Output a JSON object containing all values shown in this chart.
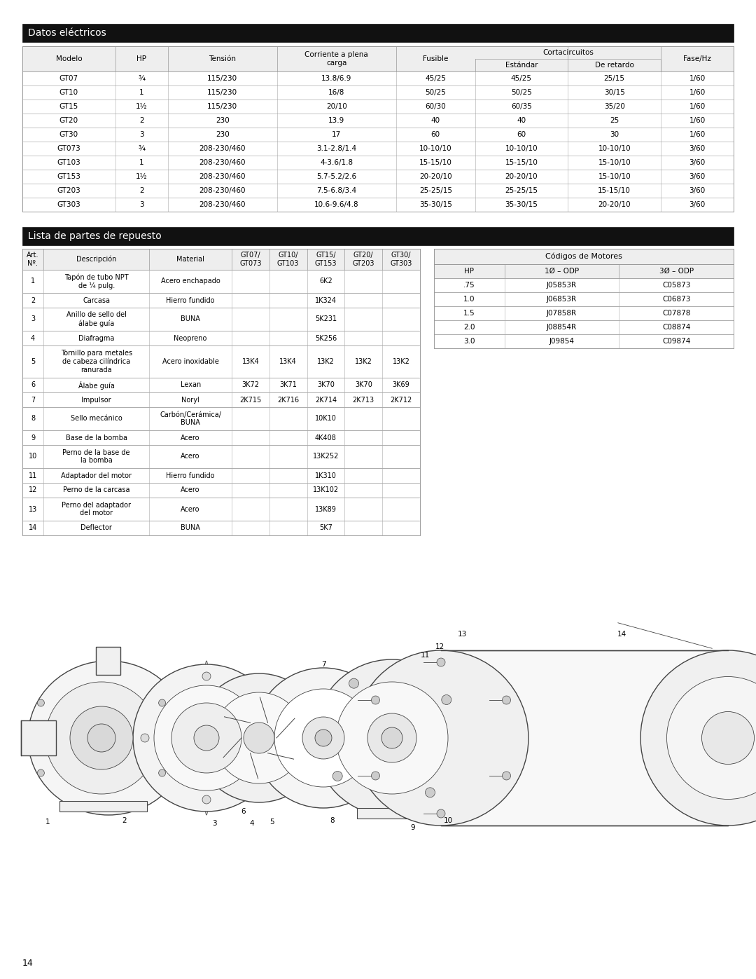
{
  "page_bg": "#ffffff",
  "header1_bg": "#111111",
  "header1_text": "Datos eléctricos",
  "header2_bg": "#111111",
  "header2_text": "Lista de partes de repuesto",
  "font_size_header": 10,
  "font_size_table": 7.5,
  "elec_table": {
    "col_headers": [
      "Modelo",
      "HP",
      "Tensión",
      "Corriente a plena\ncarga",
      "Fusible",
      "Estándar",
      "De retardo",
      "Fase/Hz"
    ],
    "span_header": "Cortacircuitos",
    "rows": [
      [
        "GT07",
        "¾",
        "115/230",
        "13.8/6.9",
        "45/25",
        "45/25",
        "25/15",
        "1/60"
      ],
      [
        "GT10",
        "1",
        "115/230",
        "16/8",
        "50/25",
        "50/25",
        "30/15",
        "1/60"
      ],
      [
        "GT15",
        "1½",
        "115/230",
        "20/10",
        "60/30",
        "60/35",
        "35/20",
        "1/60"
      ],
      [
        "GT20",
        "2",
        "230",
        "13.9",
        "40",
        "40",
        "25",
        "1/60"
      ],
      [
        "GT30",
        "3",
        "230",
        "17",
        "60",
        "60",
        "30",
        "1/60"
      ],
      [
        "GT073",
        "¾",
        "208-230/460",
        "3.1-2.8/1.4",
        "10-10/10",
        "10-10/10",
        "10-10/10",
        "3/60"
      ],
      [
        "GT103",
        "1",
        "208-230/460",
        "4-3.6/1.8",
        "15-15/10",
        "15-15/10",
        "15-10/10",
        "3/60"
      ],
      [
        "GT153",
        "1½",
        "208-230/460",
        "5.7-5.2/2.6",
        "20-20/10",
        "20-20/10",
        "15-10/10",
        "3/60"
      ],
      [
        "GT203",
        "2",
        "208-230/460",
        "7.5-6.8/3.4",
        "25-25/15",
        "25-25/15",
        "15-15/10",
        "3/60"
      ],
      [
        "GT303",
        "3",
        "208-230/460",
        "10.6-9.6/4.8",
        "35-30/15",
        "35-30/15",
        "20-20/10",
        "3/60"
      ]
    ]
  },
  "parts_table": {
    "rows": [
      [
        "1",
        "Tapón de tubo NPT\nde ¼ pulg.",
        "Acero enchapado",
        "6K2",
        "",
        "",
        "",
        ""
      ],
      [
        "2",
        "Carcasa",
        "Hierro fundido",
        "1K324",
        "",
        "",
        "",
        ""
      ],
      [
        "3",
        "Anillo de sello del\nálabe guía",
        "BUNA",
        "5K231",
        "",
        "",
        "",
        ""
      ],
      [
        "4",
        "Diafragma",
        "Neopreno",
        "5K256",
        "",
        "",
        "",
        ""
      ],
      [
        "5",
        "Tornillo para metales\nde cabeza cilíndrica\nranurada",
        "Acero inoxidable",
        "13K4",
        "13K4",
        "13K2",
        "13K2",
        "13K2"
      ],
      [
        "6",
        "Álabe guía",
        "Lexan",
        "3K72",
        "3K71",
        "3K70",
        "3K70",
        "3K69"
      ],
      [
        "7",
        "Impulsor",
        "Noryl",
        "2K715",
        "2K716",
        "2K714",
        "2K713",
        "2K712"
      ],
      [
        "8",
        "Sello mecánico",
        "Carbón/Cerámica/\nBUNA",
        "10K10",
        "",
        "",
        "",
        ""
      ],
      [
        "9",
        "Base de la bomba",
        "Acero",
        "4K408",
        "",
        "",
        "",
        ""
      ],
      [
        "10",
        "Perno de la base de\nla bomba",
        "Acero",
        "13K252",
        "",
        "",
        "",
        ""
      ],
      [
        "11",
        "Adaptador del motor",
        "Hierro fundido",
        "1K310",
        "",
        "",
        "",
        ""
      ],
      [
        "12",
        "Perno de la carcasa",
        "Acero",
        "13K102",
        "",
        "",
        "",
        ""
      ],
      [
        "13",
        "Perno del adaptador\ndel motor",
        "Acero",
        "13K89",
        "",
        "",
        "",
        ""
      ],
      [
        "14",
        "Deflector",
        "BUNA",
        "5K7",
        "",
        "",
        "",
        ""
      ]
    ],
    "span_rows": [
      0,
      1,
      2,
      3,
      7,
      8,
      9,
      10,
      11,
      12,
      13
    ]
  },
  "motor_table": {
    "header": "Códigos de Motores",
    "col_headers": [
      "HP",
      "1Ø – ODP",
      "3Ø – ODP"
    ],
    "rows": [
      [
        ".75",
        "J05853R",
        "C05873"
      ],
      [
        "1.0",
        "J06853R",
        "C06873"
      ],
      [
        "1.5",
        "J07858R",
        "C07878"
      ],
      [
        "2.0",
        "J08854R",
        "C08874"
      ],
      [
        "3.0",
        "J09854",
        "C09874"
      ]
    ]
  },
  "page_number": "14"
}
